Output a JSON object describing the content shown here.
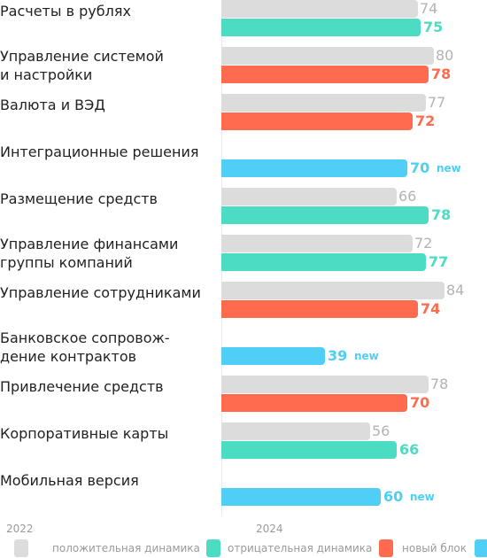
{
  "chart_data": {
    "type": "bar",
    "orientation": "horizontal",
    "categories": [
      "Расчеты в рублях",
      "Управление системой и настройки",
      "Валюта и ВЭД",
      "Интеграционные решения",
      "Размещение средств",
      "Управление финансами группы компаний",
      "Управление сотрудниками",
      "Банковское сопровож-дение контрактов",
      "Привлечение средств",
      "Корпоративные карты",
      "Мобильная версия"
    ],
    "category_lines": [
      [
        "Расчеты в рублях"
      ],
      [
        "Управление системой",
        "и настройки"
      ],
      [
        "Валюта и ВЭД"
      ],
      [
        "Интеграционные решения"
      ],
      [
        "Размещение средств"
      ],
      [
        "Управление финансами",
        "группы компаний"
      ],
      [
        "Управление сотрудниками"
      ],
      [
        "Банковское сопровож-",
        "дение контрактов"
      ],
      [
        "Привлечение средств"
      ],
      [
        "Корпоративные карты"
      ],
      [
        "Мобильная версия"
      ]
    ],
    "series": [
      {
        "name": "2022",
        "values": [
          74,
          80,
          77,
          null,
          66,
          72,
          84,
          null,
          78,
          56,
          null
        ]
      },
      {
        "name": "2024",
        "values": [
          75,
          78,
          72,
          70,
          78,
          77,
          74,
          39,
          70,
          66,
          60
        ]
      }
    ],
    "status_2024": [
      "positive",
      "negative",
      "negative",
      "new",
      "positive",
      "positive",
      "negative",
      "new",
      "negative",
      "positive",
      "new"
    ],
    "new_label": "new",
    "xlim": [
      0,
      100
    ],
    "legend": {
      "year_2022": "2022",
      "year_2024": "2024",
      "items": [
        {
          "key": "positive",
          "label": "положительная динамика"
        },
        {
          "key": "negative",
          "label": "отрицательная динамика"
        },
        {
          "key": "new",
          "label": "новый блок"
        }
      ]
    },
    "colors": {
      "bar_2022": "#dcdcdc",
      "label_2022": "#b3b3b3",
      "positive": "#4cdcc3",
      "negative": "#ff6b4e",
      "new": "#4fcff5"
    }
  }
}
